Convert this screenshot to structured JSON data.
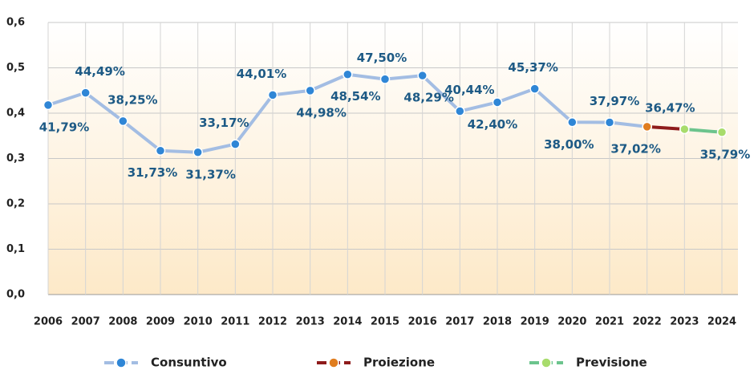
{
  "chart_data": {
    "type": "line",
    "categories": [
      "2006",
      "2007",
      "2008",
      "2009",
      "2010",
      "2011",
      "2012",
      "2013",
      "2014",
      "2015",
      "2016",
      "2017",
      "2018",
      "2019",
      "2020",
      "2021",
      "2022",
      "2023",
      "2024"
    ],
    "series": [
      {
        "name": "Consuntivo",
        "color": "#a3bde3",
        "marker_color": "#2f86d6",
        "values": [
          0.4179,
          0.4449,
          0.3825,
          0.3173,
          0.3137,
          0.3317,
          0.4401,
          0.4498,
          0.4854,
          0.475,
          0.4829,
          0.4044,
          0.424,
          0.4537,
          0.38,
          0.3797,
          0.3702,
          null,
          null
        ],
        "value_labels": [
          "41,79%",
          "44,49%",
          "38,25%",
          "31,73%",
          "31,37%",
          "33,17%",
          "44,01%",
          "44,98%",
          "48,54%",
          "47,50%",
          "48,29%",
          "40,44%",
          "42,40%",
          "45,37%",
          "38,00%",
          "37,97%",
          "37,02%",
          null,
          null
        ]
      },
      {
        "name": "Proiezione",
        "color": "#8e1b1b",
        "marker_color": "#e07d1f",
        "values": [
          null,
          null,
          null,
          null,
          null,
          null,
          null,
          null,
          null,
          null,
          null,
          null,
          null,
          null,
          null,
          null,
          0.3702,
          0.3647,
          null
        ],
        "value_labels": [
          null,
          null,
          null,
          null,
          null,
          null,
          null,
          null,
          null,
          null,
          null,
          null,
          null,
          null,
          null,
          null,
          null,
          "36,47%",
          null
        ]
      },
      {
        "name": "Previsione",
        "color": "#6cc48d",
        "marker_color": "#a8dc6c",
        "values": [
          null,
          null,
          null,
          null,
          null,
          null,
          null,
          null,
          null,
          null,
          null,
          null,
          null,
          null,
          null,
          null,
          null,
          0.3647,
          0.3579
        ],
        "value_labels": [
          null,
          null,
          null,
          null,
          null,
          null,
          null,
          null,
          null,
          null,
          null,
          null,
          null,
          null,
          null,
          null,
          null,
          null,
          "35,79%"
        ]
      }
    ],
    "ylim": [
      0,
      0.6
    ],
    "yticks": [
      {
        "value": 0,
        "label": "0,0"
      },
      {
        "value": 0.1,
        "label": "0,1"
      },
      {
        "value": 0.2,
        "label": "0,2"
      },
      {
        "value": 0.3,
        "label": "0,3"
      },
      {
        "value": 0.4,
        "label": "0,4"
      },
      {
        "value": 0.5,
        "label": "0,5"
      },
      {
        "value": 0.6,
        "label": "0,6"
      }
    ],
    "grid": true,
    "legend": "bottom"
  }
}
